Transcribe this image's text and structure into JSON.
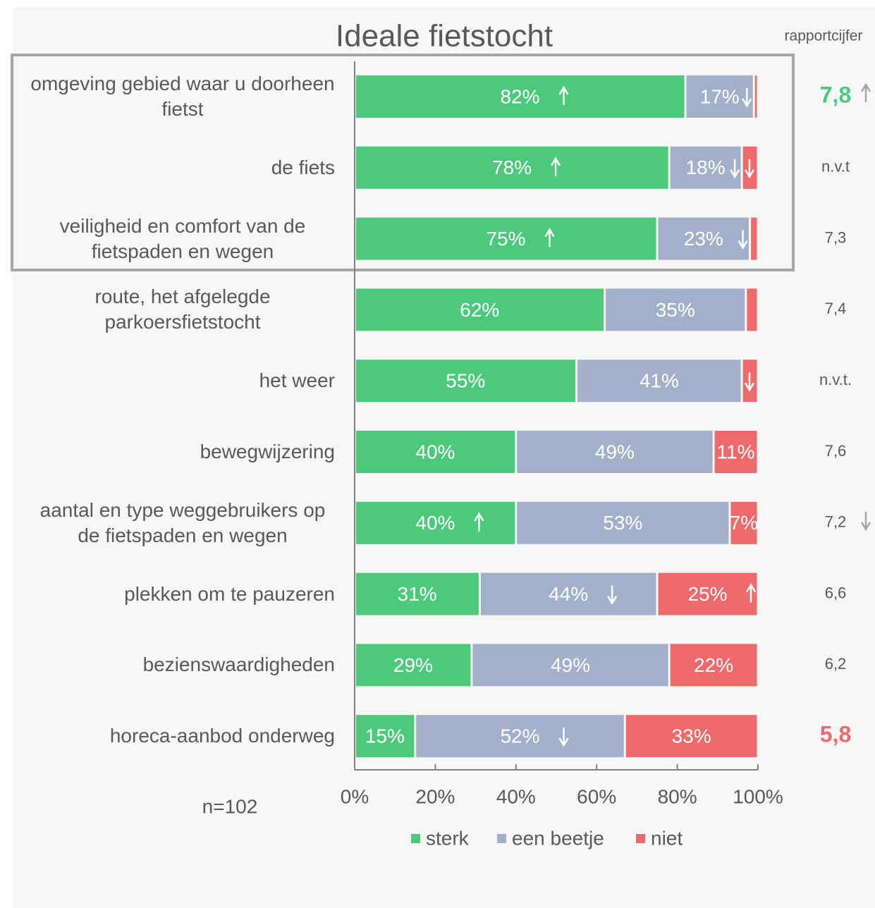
{
  "chart_data": {
    "type": "stacked_bar_horizontal",
    "title": "Ideale fietstocht",
    "categories": [
      "omgeving gebied waar u doorheen fietst",
      "de fiets",
      "veiligheid en comfort van de fietspaden en wegen",
      "route, het afgelegde parkoersfietstocht",
      "het weer",
      "bewegwijzering",
      "aantal en type weggebruikers op de fietspaden en wegen",
      "plekken om te pauzeren",
      "bezienswaardigheden",
      "horeca-aanbod onderweg"
    ],
    "series": [
      {
        "name": "sterk",
        "color": "#4cc97a",
        "values": [
          82,
          78,
          75,
          62,
          55,
          40,
          40,
          31,
          29,
          15
        ],
        "value_labels": [
          "82%",
          "78%",
          "75%",
          "62%",
          "55%",
          "40%",
          "40%",
          "31%",
          "29%",
          "15%"
        ],
        "arrows": [
          "up",
          "up",
          "up",
          null,
          null,
          null,
          "up",
          null,
          null,
          null
        ]
      },
      {
        "name": "een beetje",
        "color": "#a2b0c9",
        "values": [
          17,
          18,
          23,
          35,
          41,
          49,
          53,
          44,
          49,
          52
        ],
        "value_labels": [
          "17%",
          "18%",
          "23%",
          "35%",
          "41%",
          "49%",
          "53%",
          "44%",
          "49%",
          "52%"
        ],
        "arrows": [
          "down",
          "down",
          "down",
          null,
          null,
          null,
          null,
          "down",
          null,
          "down"
        ]
      },
      {
        "name": "niet",
        "color": "#ef6b6b",
        "values": [
          1,
          4,
          2,
          3,
          4,
          11,
          7,
          25,
          22,
          33
        ],
        "value_labels": [
          null,
          null,
          null,
          null,
          null,
          "11%",
          "7%",
          "25%",
          "22%",
          "33%"
        ],
        "arrows": [
          null,
          "down",
          null,
          null,
          "down",
          null,
          null,
          "up",
          null,
          null
        ]
      }
    ],
    "xlim": [
      0,
      100
    ],
    "xticks": [
      {
        "value": 0,
        "label": "0%"
      },
      {
        "value": 20,
        "label": "20%"
      },
      {
        "value": 40,
        "label": "40%"
      },
      {
        "value": 60,
        "label": "60%"
      },
      {
        "value": 80,
        "label": "80%"
      },
      {
        "value": 100,
        "label": "100%"
      }
    ],
    "legend": "bottom",
    "annotation": "n=102",
    "rapportcijfer": {
      "label": "rapportcijfer",
      "values": [
        "7,8",
        "n.v.t",
        "7,3",
        "7,4",
        "n.v.t.",
        "7,6",
        "7,2",
        "6,6",
        "6,2",
        "5,8"
      ],
      "colors": [
        "#4cc97a",
        null,
        null,
        null,
        null,
        null,
        null,
        null,
        null,
        "#ef6b6b"
      ],
      "arrows": [
        "up",
        null,
        null,
        null,
        null,
        null,
        "down",
        null,
        null,
        null
      ]
    }
  }
}
